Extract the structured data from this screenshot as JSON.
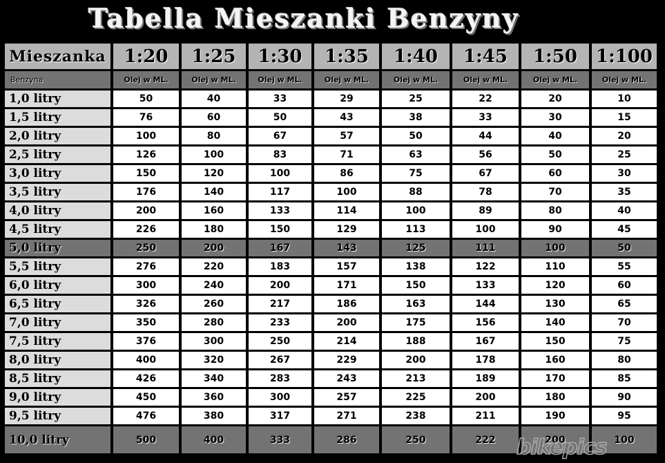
{
  "title": "Tabella Mieszanki Benzyny",
  "header": {
    "corner": "Mieszanka",
    "ratios": [
      "1:20",
      "1:25",
      "1:30",
      "1:35",
      "1:40",
      "1:45",
      "1:50",
      "1:100"
    ]
  },
  "subheader": {
    "corner": "Benzyna",
    "unit": "Olej w ML."
  },
  "highlight_color": "#737373",
  "rows": [
    {
      "label": "1,0 litry",
      "values": [
        50,
        40,
        33,
        29,
        25,
        22,
        20,
        10
      ]
    },
    {
      "label": "1,5 litry",
      "values": [
        76,
        60,
        50,
        43,
        38,
        33,
        30,
        15
      ]
    },
    {
      "label": "2,0 litry",
      "values": [
        100,
        80,
        67,
        57,
        50,
        44,
        40,
        20
      ]
    },
    {
      "label": "2,5 litry",
      "values": [
        126,
        100,
        83,
        71,
        63,
        56,
        50,
        25
      ]
    },
    {
      "label": "3,0 litry",
      "values": [
        150,
        120,
        100,
        86,
        75,
        67,
        60,
        30
      ]
    },
    {
      "label": "3,5 litry",
      "values": [
        176,
        140,
        117,
        100,
        88,
        78,
        70,
        35
      ]
    },
    {
      "label": "4,0 litry",
      "values": [
        200,
        160,
        133,
        114,
        100,
        89,
        80,
        40
      ]
    },
    {
      "label": "4,5 litry",
      "values": [
        226,
        180,
        150,
        129,
        113,
        100,
        90,
        45
      ]
    },
    {
      "label": "5,0 litry",
      "values": [
        250,
        200,
        167,
        143,
        125,
        111,
        100,
        50
      ],
      "highlight": true
    },
    {
      "label": "5,5 litry",
      "values": [
        276,
        220,
        183,
        157,
        138,
        122,
        110,
        55
      ]
    },
    {
      "label": "6,0 litry",
      "values": [
        300,
        240,
        200,
        171,
        150,
        133,
        120,
        60
      ]
    },
    {
      "label": "6,5 litry",
      "values": [
        326,
        260,
        217,
        186,
        163,
        144,
        130,
        65
      ]
    },
    {
      "label": "7,0 litry",
      "values": [
        350,
        280,
        233,
        200,
        175,
        156,
        140,
        70
      ]
    },
    {
      "label": "7,5 litry",
      "values": [
        376,
        300,
        250,
        214,
        188,
        167,
        150,
        75
      ]
    },
    {
      "label": "8,0 litry",
      "values": [
        400,
        320,
        267,
        229,
        200,
        178,
        160,
        80
      ]
    },
    {
      "label": "8,5 litry",
      "values": [
        426,
        340,
        283,
        243,
        213,
        189,
        170,
        85
      ]
    },
    {
      "label": "9,0 litry",
      "values": [
        450,
        360,
        300,
        257,
        225,
        200,
        180,
        90
      ]
    },
    {
      "label": "9,5 litry",
      "values": [
        476,
        380,
        317,
        271,
        238,
        211,
        190,
        95
      ]
    },
    {
      "label": "10,0 litry",
      "values": [
        500,
        400,
        333,
        286,
        250,
        222,
        200,
        100
      ],
      "highlight": true
    }
  ],
  "watermark": "bikepics"
}
